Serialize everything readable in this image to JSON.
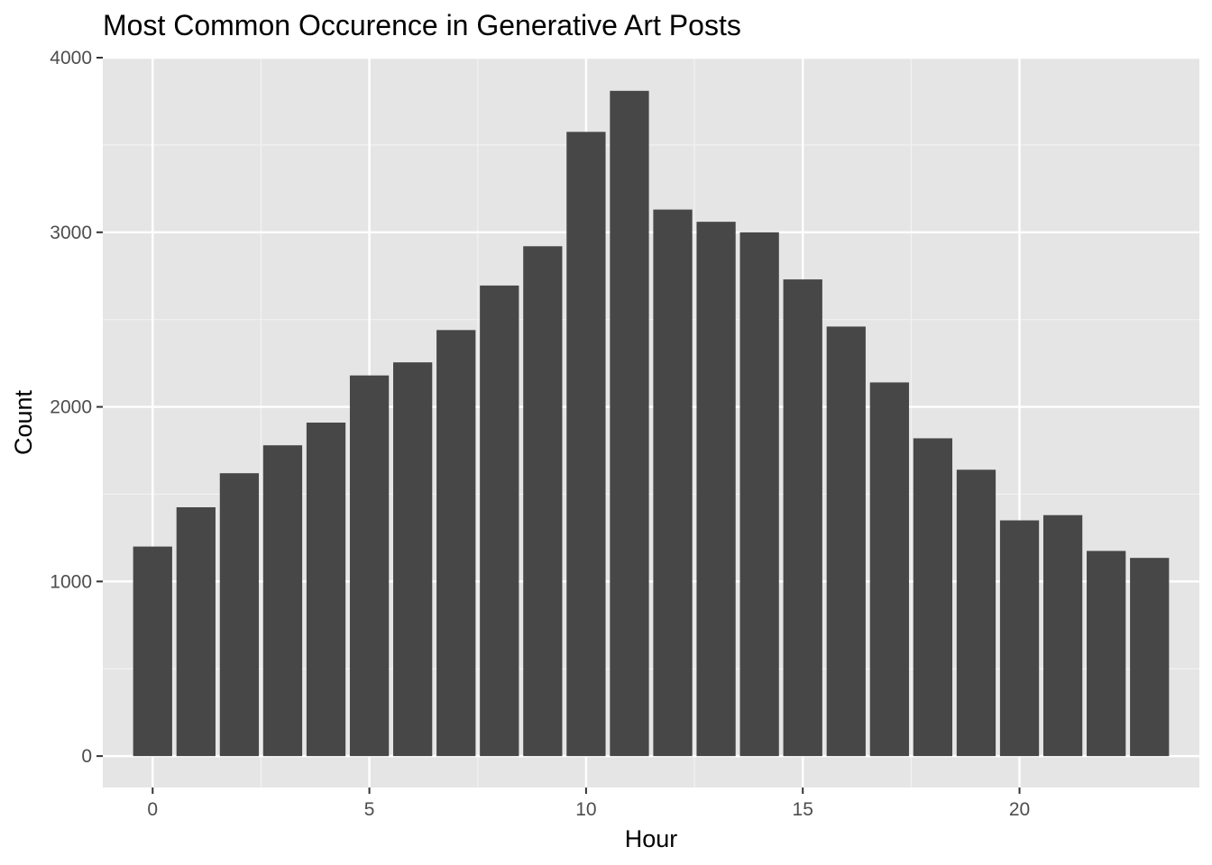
{
  "chart_data": {
    "type": "bar",
    "title": "Most Common Occurence in Generative Art Posts",
    "xlabel": "Hour",
    "ylabel": "Count",
    "x": [
      0,
      1,
      2,
      3,
      4,
      5,
      6,
      7,
      8,
      9,
      10,
      11,
      12,
      13,
      14,
      15,
      16,
      17,
      18,
      19,
      20,
      21,
      22,
      23
    ],
    "values": [
      1200,
      1425,
      1620,
      1780,
      1910,
      2180,
      2255,
      2440,
      2695,
      2920,
      3575,
      3810,
      3130,
      3060,
      3000,
      2730,
      2460,
      2140,
      1820,
      1640,
      1350,
      1380,
      1175,
      1135
    ],
    "xlim": [
      -1.15,
      24.15
    ],
    "ylim": [
      -180,
      4000
    ],
    "x_ticks": [
      0,
      5,
      10,
      15,
      20
    ],
    "x_tick_labels": [
      "0",
      "5",
      "10",
      "15",
      "20"
    ],
    "y_ticks": [
      0,
      1000,
      2000,
      3000,
      4000
    ],
    "y_tick_labels": [
      "0",
      "1000",
      "2000",
      "3000",
      "4000"
    ],
    "grid": true,
    "colors": {
      "bar": "#474747",
      "panel": "#e5e5e5",
      "grid_major": "#ffffff",
      "grid_minor": "#f2f2f2",
      "tick": "#333333"
    }
  }
}
